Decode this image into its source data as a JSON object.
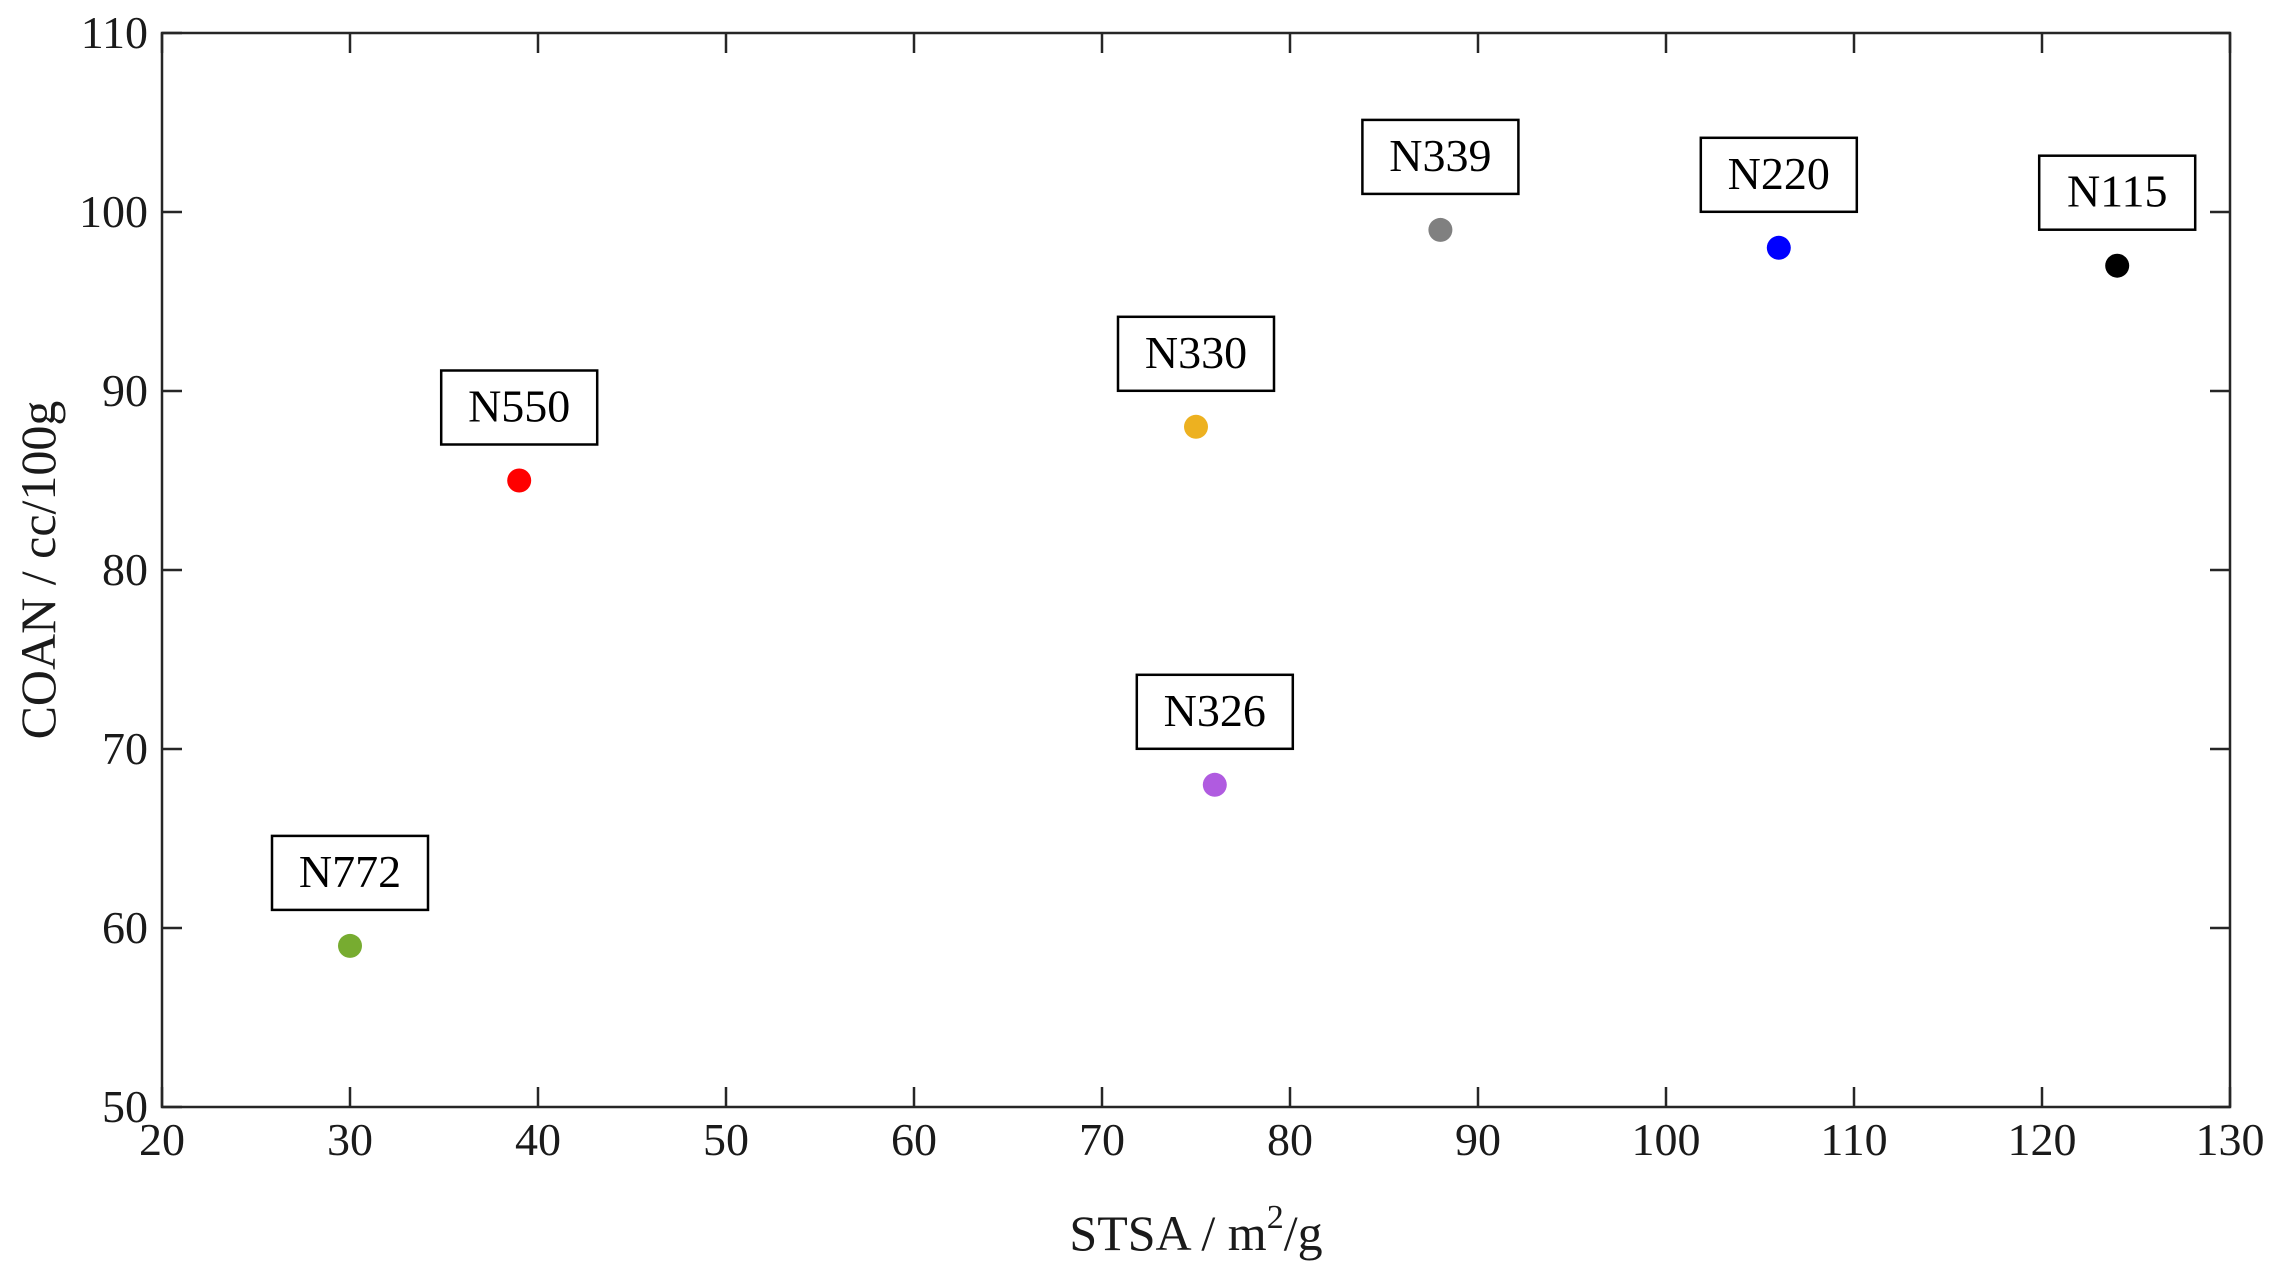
{
  "chart_data": {
    "type": "scatter",
    "title": "",
    "xlabel_prefix": "STSA / m",
    "xlabel_sup": "2",
    "xlabel_suffix": "/g",
    "ylabel": "COAN / cc/100g",
    "xlim": [
      20,
      130
    ],
    "ylim": [
      50,
      110
    ],
    "xticks": [
      20,
      30,
      40,
      50,
      60,
      70,
      80,
      90,
      100,
      110,
      120,
      130
    ],
    "yticks": [
      50,
      60,
      70,
      80,
      90,
      100,
      110
    ],
    "grid": false,
    "points": [
      {
        "label": "N772",
        "x": 30,
        "y": 59,
        "color": "#77AC30"
      },
      {
        "label": "N550",
        "x": 39,
        "y": 85,
        "color": "#FF0000"
      },
      {
        "label": "N330",
        "x": 75,
        "y": 88,
        "color": "#EDB120"
      },
      {
        "label": "N326",
        "x": 76,
        "y": 68,
        "color": "#B05BE0"
      },
      {
        "label": "N339",
        "x": 88,
        "y": 99,
        "color": "#808080"
      },
      {
        "label": "N220",
        "x": 106,
        "y": 98,
        "color": "#0000FF"
      },
      {
        "label": "N115",
        "x": 124,
        "y": 97,
        "color": "#000000"
      }
    ]
  }
}
